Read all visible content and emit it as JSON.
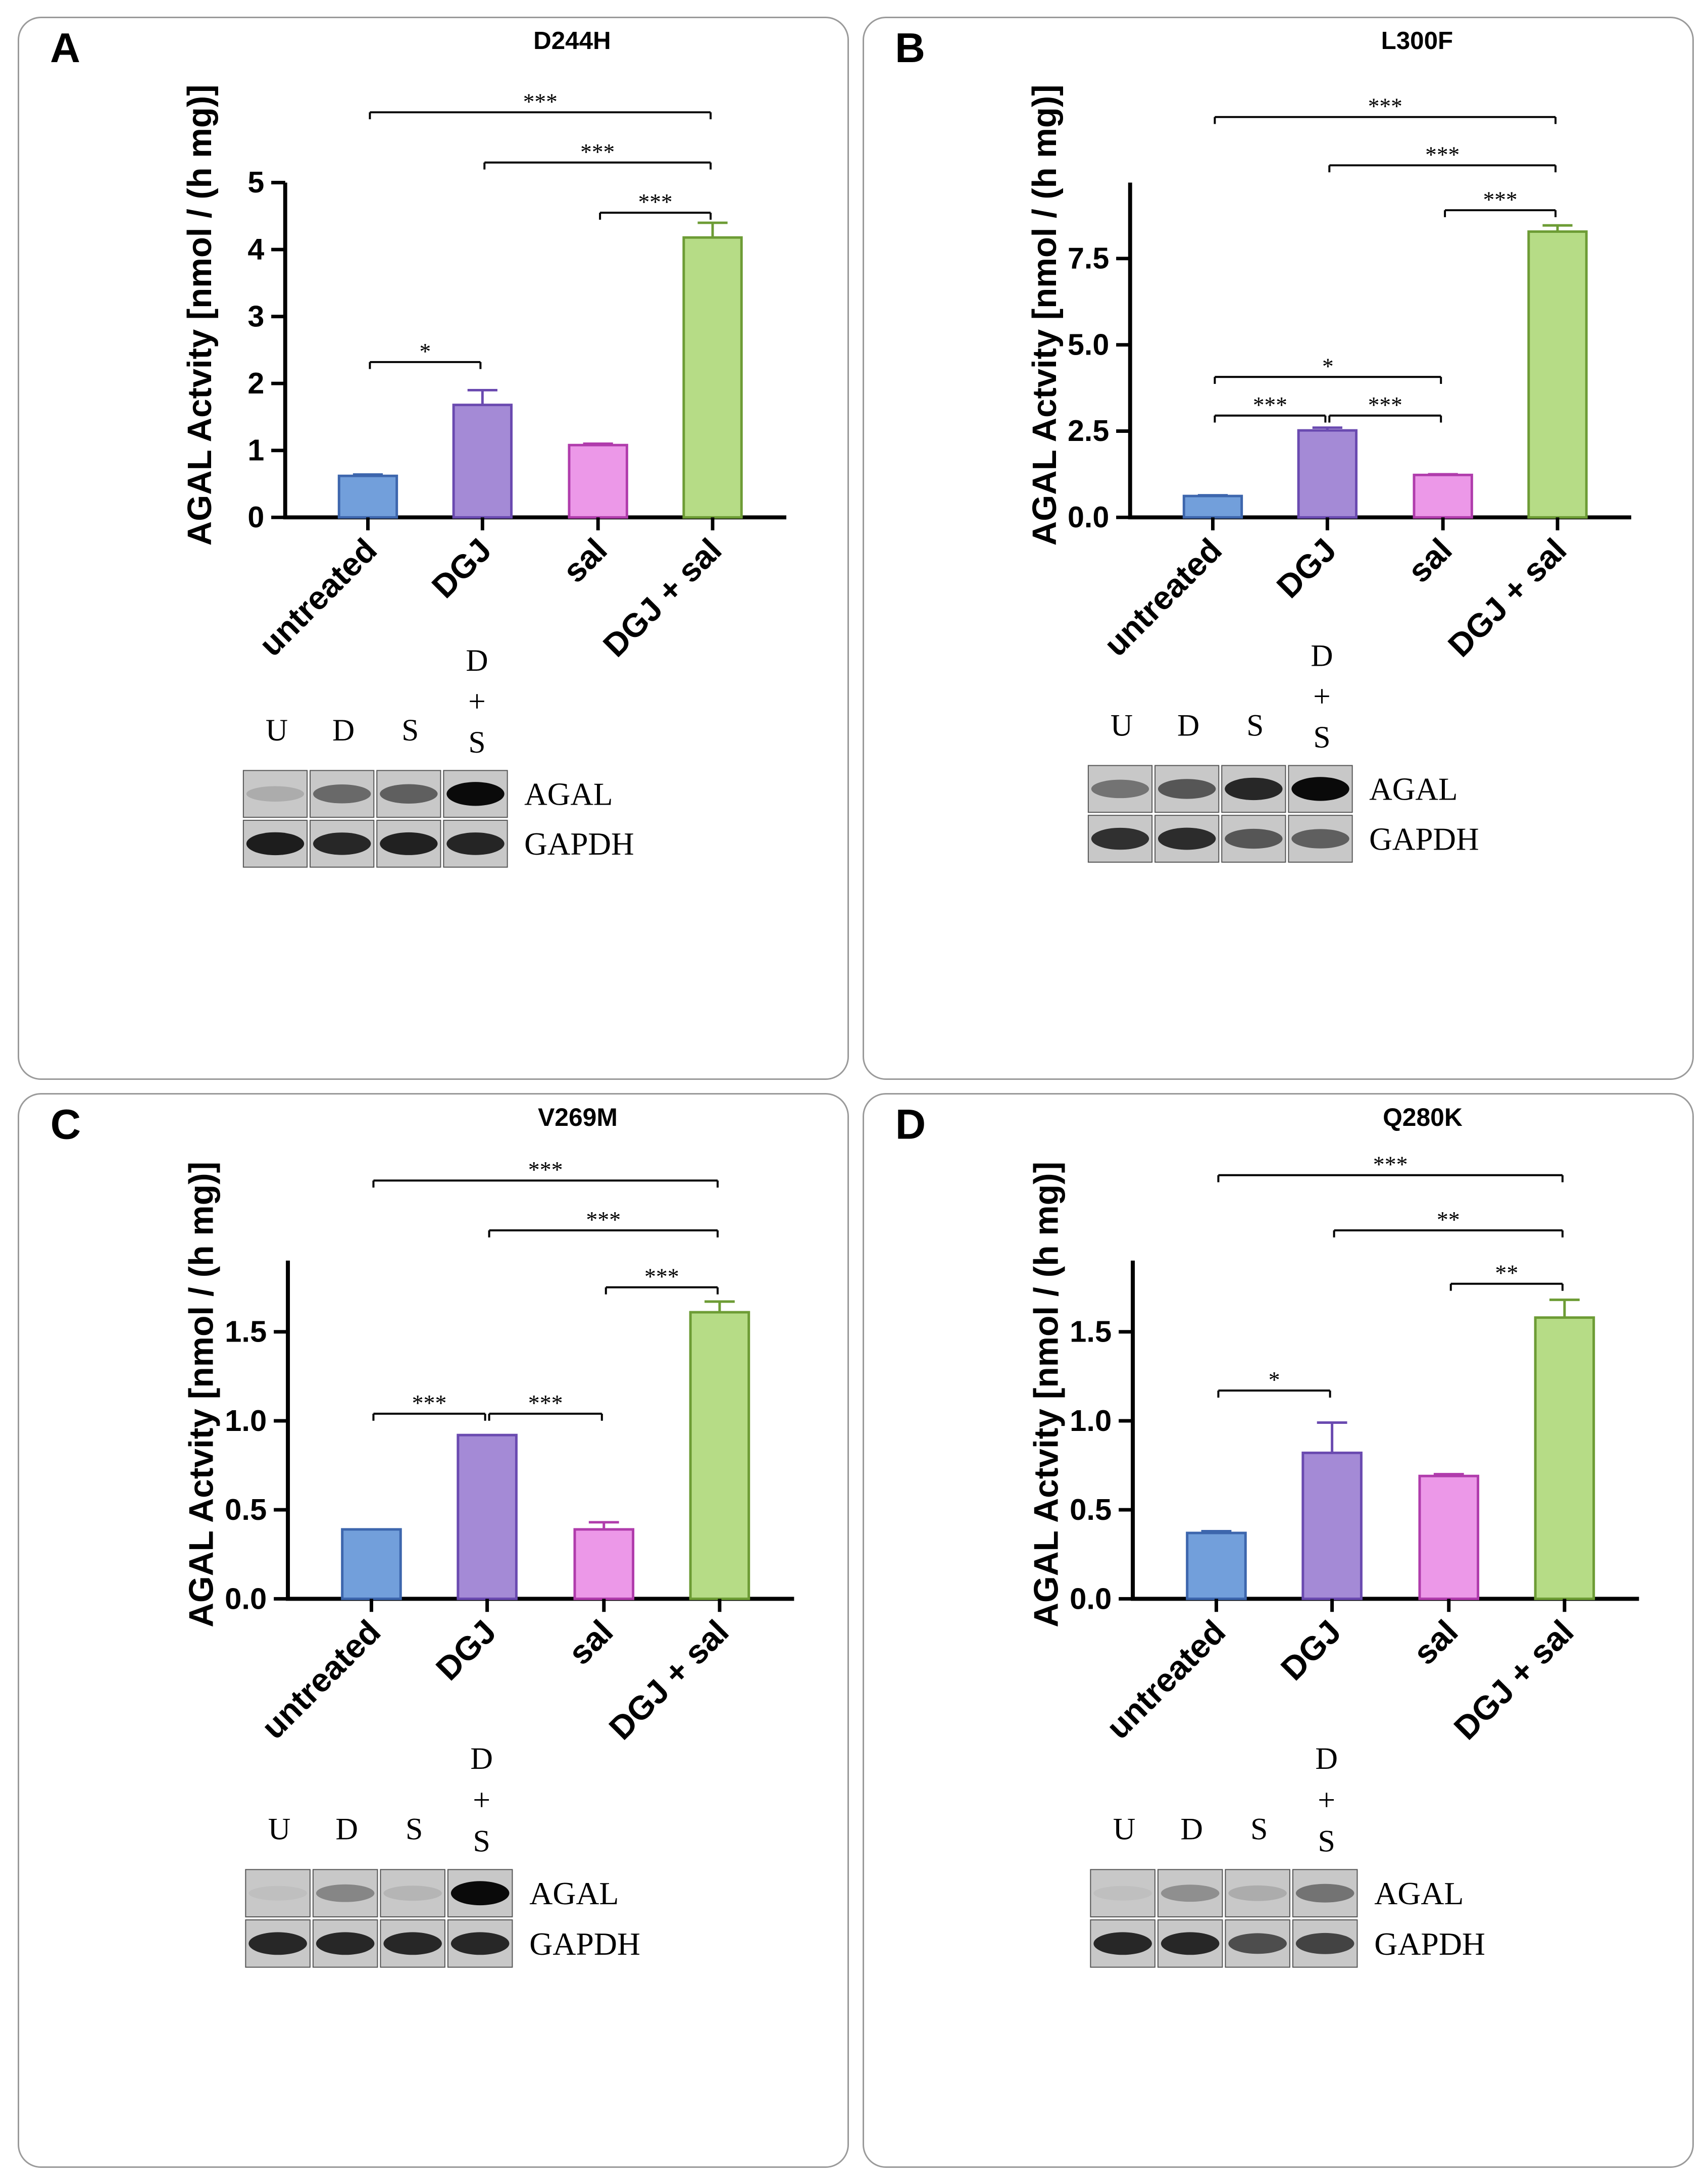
{
  "colors": {
    "bar_fill": [
      "#729fdb",
      "#a48ad6",
      "#ec98e8",
      "#b6dc86"
    ],
    "bar_stroke": [
      "#3d66ad",
      "#6a4ab0",
      "#b03cac",
      "#6d9c35"
    ],
    "axis": "#000000",
    "panel_border": "#9a9a9a"
  },
  "chart_data": [
    {
      "type": "bar",
      "letter": "A",
      "title": "D244H",
      "ylabel": "AGAL Actvity [nmol / (h mg)]",
      "categories": [
        "untreated",
        "DGJ",
        "sal",
        "DGJ + sal"
      ],
      "values": [
        0.62,
        1.68,
        1.08,
        4.18
      ],
      "errors": [
        0.02,
        0.22,
        0.02,
        0.22
      ],
      "ylim": [
        0,
        5
      ],
      "yticks": [
        "0",
        "1",
        "2",
        "3",
        "4",
        "5"
      ],
      "yticks_values": [
        0,
        1,
        2,
        3,
        4,
        5
      ],
      "significance": [
        {
          "from": 0,
          "to": 3,
          "label": "***",
          "y": 6.05
        },
        {
          "from": 1,
          "to": 3,
          "label": "***",
          "y": 5.3
        },
        {
          "from": 2,
          "to": 3,
          "label": "***",
          "y": 4.55
        },
        {
          "from": 0,
          "to": 1,
          "label": "*",
          "y": 2.32
        }
      ],
      "blot": {
        "lanes": [
          "U",
          "D",
          "S",
          "D\n+\nS"
        ],
        "labels": [
          "AGAL",
          "GAPDH"
        ],
        "agal_intensity": [
          0.15,
          0.5,
          0.55,
          1.0
        ],
        "gapdh_intensity": [
          0.9,
          0.85,
          0.88,
          0.86
        ]
      }
    },
    {
      "type": "bar",
      "letter": "B",
      "title": "L300F",
      "ylabel": "AGAL Actvity [nmol / (h mg)]",
      "categories": [
        "untreated",
        "DGJ",
        "sal",
        "DGJ + sal"
      ],
      "values": [
        0.62,
        2.52,
        1.23,
        8.28
      ],
      "errors": [
        0.02,
        0.08,
        0.02,
        0.18
      ],
      "ylim": [
        0,
        9.7
      ],
      "yticks": [
        "0.0",
        "2.5",
        "5.0",
        "7.5"
      ],
      "yticks_values": [
        0,
        2.5,
        5,
        7.5
      ],
      "significance": [
        {
          "from": 0,
          "to": 3,
          "label": "***",
          "y": 11.6
        },
        {
          "from": 1,
          "to": 3,
          "label": "***",
          "y": 10.2
        },
        {
          "from": 2,
          "to": 3,
          "label": "***",
          "y": 8.9
        },
        {
          "from": 0,
          "to": 2,
          "label": "*",
          "y": 4.07
        },
        {
          "from": 0,
          "to": 1,
          "label": "***",
          "y": 2.95
        },
        {
          "from": 1,
          "to": 2,
          "label": "***",
          "y": 2.95
        }
      ],
      "blot": {
        "lanes": [
          "U",
          "D",
          "S",
          "D\n+\nS"
        ],
        "labels": [
          "AGAL",
          "GAPDH"
        ],
        "agal_intensity": [
          0.45,
          0.6,
          0.85,
          1.0
        ],
        "gapdh_intensity": [
          0.8,
          0.82,
          0.6,
          0.55
        ]
      }
    },
    {
      "type": "bar",
      "letter": "C",
      "title": "V269M",
      "ylabel": "AGAL Actvity [nmol / (h mg)]",
      "categories": [
        "untreated",
        "DGJ",
        "sal",
        "DGJ + sal"
      ],
      "values": [
        0.39,
        0.92,
        0.39,
        1.61
      ],
      "errors": [
        0.0,
        0.0,
        0.04,
        0.06
      ],
      "ylim": [
        0,
        1.9
      ],
      "yticks": [
        "0.0",
        "0.5",
        "1.0",
        "1.5"
      ],
      "yticks_values": [
        0,
        0.5,
        1.0,
        1.5
      ],
      "significance": [
        {
          "from": 0,
          "to": 3,
          "label": "***",
          "y": 2.35
        },
        {
          "from": 1,
          "to": 3,
          "label": "***",
          "y": 2.07
        },
        {
          "from": 2,
          "to": 3,
          "label": "***",
          "y": 1.75
        },
        {
          "from": 0,
          "to": 1,
          "label": "***",
          "y": 1.04
        },
        {
          "from": 1,
          "to": 2,
          "label": "***",
          "y": 1.04
        }
      ],
      "blot": {
        "lanes": [
          "U",
          "D",
          "S",
          "D\n+\nS"
        ],
        "labels": [
          "AGAL",
          "GAPDH"
        ],
        "agal_intensity": [
          0.05,
          0.35,
          0.1,
          1.0
        ],
        "gapdh_intensity": [
          0.85,
          0.85,
          0.85,
          0.85
        ]
      }
    },
    {
      "type": "bar",
      "letter": "D",
      "title": "Q280K",
      "ylabel": "AGAL Actvity [nmol / (h mg)]",
      "categories": [
        "untreated",
        "DGJ",
        "sal",
        "DGJ + sal"
      ],
      "values": [
        0.37,
        0.82,
        0.69,
        1.58
      ],
      "errors": [
        0.01,
        0.17,
        0.01,
        0.1
      ],
      "ylim": [
        0,
        1.9
      ],
      "yticks": [
        "0.0",
        "0.5",
        "1.0",
        "1.5"
      ],
      "yticks_values": [
        0,
        0.5,
        1.0,
        1.5
      ],
      "significance": [
        {
          "from": 0,
          "to": 3,
          "label": "***",
          "y": 2.38
        },
        {
          "from": 1,
          "to": 3,
          "label": "**",
          "y": 2.07
        },
        {
          "from": 2,
          "to": 3,
          "label": "**",
          "y": 1.77
        },
        {
          "from": 0,
          "to": 1,
          "label": "*",
          "y": 1.17
        }
      ],
      "blot": {
        "lanes": [
          "U",
          "D",
          "S",
          "D\n+\nS"
        ],
        "labels": [
          "AGAL",
          "GAPDH"
        ],
        "agal_intensity": [
          0.05,
          0.3,
          0.15,
          0.45
        ],
        "gapdh_intensity": [
          0.85,
          0.85,
          0.65,
          0.7
        ]
      }
    }
  ]
}
